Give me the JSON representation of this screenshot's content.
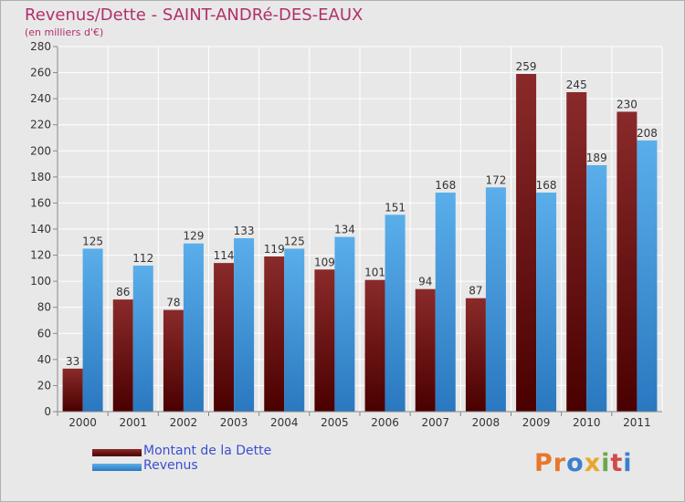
{
  "title": "Revenus/Dette - SAINT-ANDRé-DES-EAUX",
  "subtitle": "(en milliers d'€)",
  "colors": {
    "dette": "#6e1414",
    "revenus": "#3d93dc",
    "title": "#b0306a",
    "legend_text": "#3a4fd0"
  },
  "legend": [
    {
      "label": "Montant de la Dette",
      "color": "#6e1414"
    },
    {
      "label": "Revenus",
      "color": "#3d93dc"
    }
  ],
  "logo": {
    "text": "Proxiti",
    "letters": [
      {
        "ch": "P",
        "color": "#e8772a"
      },
      {
        "ch": "r",
        "color": "#e8772a"
      },
      {
        "ch": "o",
        "color": "#3d7fcf"
      },
      {
        "ch": "x",
        "color": "#e8a72a"
      },
      {
        "ch": "i",
        "color": "#6aa84f"
      },
      {
        "ch": "t",
        "color": "#d04a4a"
      },
      {
        "ch": "i",
        "color": "#3d7fcf"
      }
    ]
  },
  "chart_data": {
    "type": "bar",
    "categories": [
      "2000",
      "2001",
      "2002",
      "2003",
      "2004",
      "2005",
      "2006",
      "2007",
      "2008",
      "2009",
      "2010",
      "2011"
    ],
    "series": [
      {
        "name": "Montant de la Dette",
        "values": [
          33,
          86,
          78,
          114,
          119,
          109,
          101,
          94,
          87,
          259,
          245,
          230
        ]
      },
      {
        "name": "Revenus",
        "values": [
          125,
          112,
          129,
          133,
          125,
          134,
          151,
          168,
          172,
          168,
          189,
          208
        ]
      }
    ],
    "ylim": [
      0,
      280
    ],
    "yticks": [
      0,
      20,
      40,
      60,
      80,
      100,
      120,
      140,
      160,
      180,
      200,
      220,
      240,
      260,
      280
    ],
    "grid": true,
    "legend_position": "bottom-left",
    "xlabel": "",
    "ylabel": ""
  }
}
